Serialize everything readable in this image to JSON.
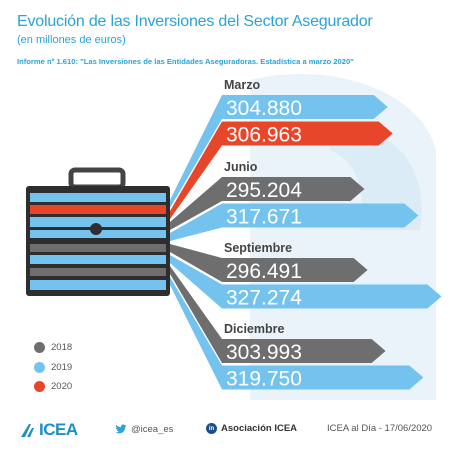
{
  "header": {
    "title": "Evolución de las Inversiones del Sector Asegurador",
    "subtitle": "(en millones de euros)",
    "source": "Informe nº 1.610: \"Las Inversiones de las Entidades Aseguradoras. Estadística a marzo 2020\""
  },
  "chart_data": {
    "type": "bar",
    "title": "Evolución de las Inversiones del Sector Asegurador",
    "subtitle": "(en millones de euros)",
    "categories": [
      "Marzo",
      "Junio",
      "Septiembre",
      "Diciembre"
    ],
    "series": [
      {
        "name": "2018",
        "color": "#6e6e6e",
        "values": [
          null,
          295204,
          296491,
          303993
        ],
        "labels": [
          "",
          "295.204",
          "296.491",
          "303.993"
        ]
      },
      {
        "name": "2019",
        "color": "#74c3ef",
        "values": [
          304880,
          317671,
          327274,
          319750
        ],
        "labels": [
          "304.880",
          "317.671",
          "327.274",
          "319.750"
        ]
      },
      {
        "name": "2020",
        "color": "#e8462a",
        "values": [
          306963,
          null,
          null,
          null
        ],
        "labels": [
          "306.963",
          "",
          "",
          ""
        ]
      }
    ],
    "display_rows": [
      {
        "period": 0,
        "series": 1
      },
      {
        "period": 0,
        "series": 2
      },
      {
        "period": 1,
        "series": 0
      },
      {
        "period": 1,
        "series": 1
      },
      {
        "period": 2,
        "series": 0
      },
      {
        "period": 2,
        "series": 1
      },
      {
        "period": 3,
        "series": 0
      },
      {
        "period": 3,
        "series": 1
      }
    ],
    "xlabel": "",
    "ylabel": "",
    "legend_position": "bottom-left",
    "grid": false
  },
  "legend": [
    {
      "label": "2018",
      "color": "#6e6e6e"
    },
    {
      "label": "2019",
      "color": "#74c3ef"
    },
    {
      "label": "2020",
      "color": "#e8462a"
    }
  ],
  "icons": {
    "briefcase": "briefcase-icon",
    "twitter": "twitter-icon",
    "linkedin": "linkedin-icon"
  },
  "footer": {
    "logo": "ICEA",
    "twitter": "@icea_es",
    "linkedin": "Asociación ICEA",
    "linkedin_glyph": "in",
    "credit": "ICEA al Día - 17/06/2020"
  }
}
